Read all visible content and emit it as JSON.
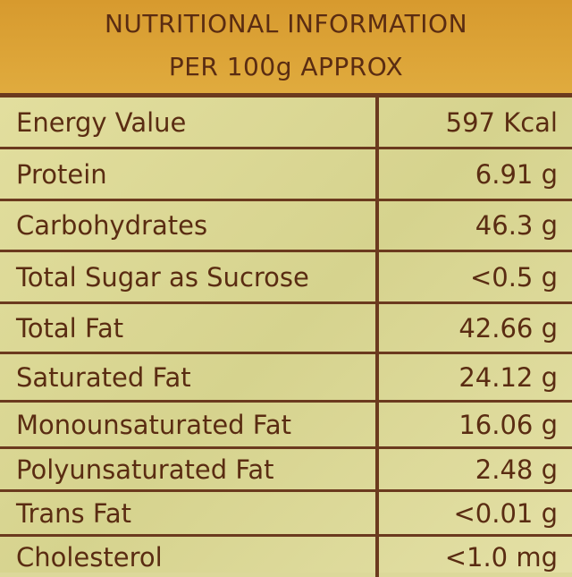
{
  "header": {
    "title": [
      "NUTRITIONAL INFORMATION",
      "PER 100g APPROX"
    ]
  },
  "table": {
    "rows": [
      [
        "Energy Value",
        "597 Kcal"
      ],
      [
        "Protein",
        "6.91 g"
      ],
      [
        "Carbohydrates",
        "46.3 g"
      ],
      [
        "Total Sugar as Sucrose",
        "<0.5 g"
      ],
      [
        "Total Fat",
        "42.66 g"
      ],
      [
        "Saturated Fat",
        "24.12 g"
      ],
      [
        "Monounsaturated Fat",
        "16.06 g"
      ],
      [
        "Polyunsaturated Fat",
        "2.48 g"
      ],
      [
        "Trans Fat",
        "<0.01 g"
      ],
      [
        "Cholesterol",
        "<1.0 mg"
      ]
    ]
  }
}
